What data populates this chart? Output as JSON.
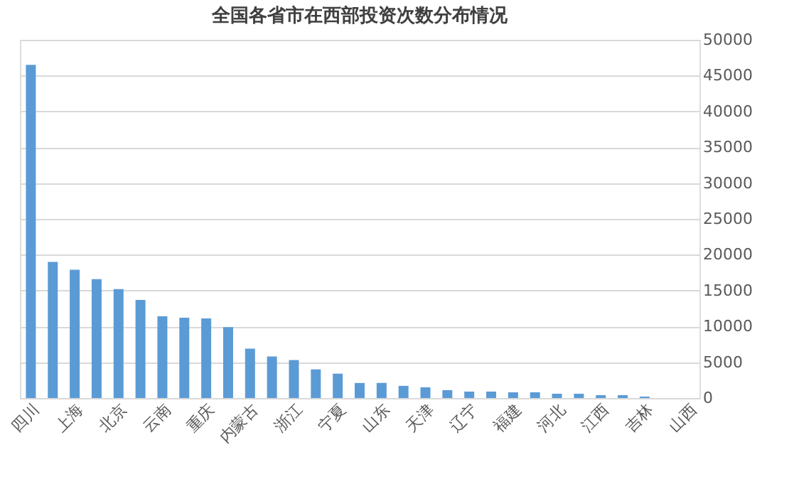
{
  "chart_data": {
    "type": "bar",
    "title": "全国各省市在西部投资次数分布情况",
    "categories": [
      "四川",
      null,
      "上海",
      null,
      "北京",
      null,
      "云南",
      null,
      "重庆",
      null,
      "内蒙古",
      null,
      "浙江",
      null,
      "宁夏",
      null,
      "山东",
      null,
      "天津",
      null,
      "辽宁",
      null,
      "福建",
      null,
      "河北",
      null,
      "江西",
      null,
      "吉林",
      null,
      "山西"
    ],
    "values": [
      46500,
      19000,
      17900,
      16600,
      15200,
      13700,
      11400,
      11200,
      11100,
      9900,
      6900,
      5800,
      5300,
      4000,
      3400,
      2100,
      2100,
      1700,
      1500,
      1100,
      900,
      900,
      800,
      800,
      600,
      600,
      400,
      400,
      200,
      0,
      0
    ],
    "color": "#5b9bd5",
    "ylim": [
      0,
      50000
    ],
    "yticks": [
      0,
      5000,
      10000,
      15000,
      20000,
      25000,
      30000,
      35000,
      40000,
      45000,
      50000
    ],
    "grid": "y"
  }
}
